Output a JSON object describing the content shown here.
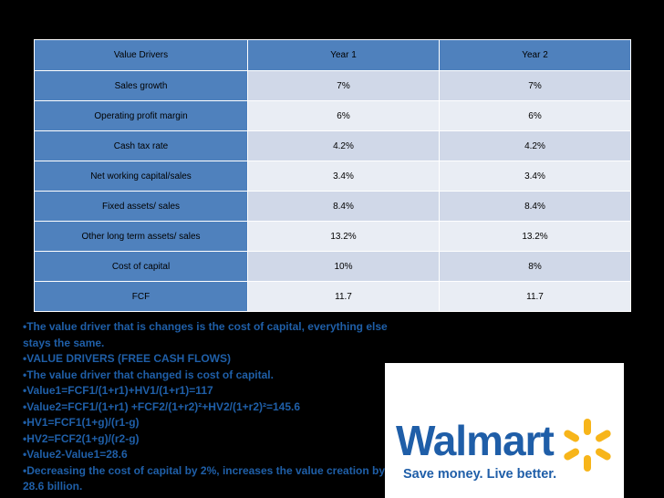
{
  "table": {
    "headers": [
      "Value Drivers",
      "Year 1",
      "Year 2"
    ],
    "rows": [
      {
        "label": "Sales growth",
        "y1": "7%",
        "y2": "7%"
      },
      {
        "label": "Operating profit margin",
        "y1": "6%",
        "y2": "6%"
      },
      {
        "label": "Cash tax rate",
        "y1": "4.2%",
        "y2": "4.2%"
      },
      {
        "label": "Net working capital/sales",
        "y1": "3.4%",
        "y2": "3.4%"
      },
      {
        "label": "Fixed assets/ sales",
        "y1": "8.4%",
        "y2": "8.4%"
      },
      {
        "label": "Other long term assets/ sales",
        "y1": "13.2%",
        "y2": "13.2%"
      },
      {
        "label": "Cost of capital",
        "y1": "10%",
        "y2": "8%"
      },
      {
        "label": "FCF",
        "y1": "11.7",
        "y2": "11.7"
      }
    ]
  },
  "notes": [
    "The value driver that is changes is the cost of capital, everything else stays the same.",
    "VALUE DRIVERS (FREE CASH FLOWS)",
    "The value driver that changed is cost of capital.",
    "Value1=FCF1/(1+r1)+HV1/(1+r1)=117",
    "Value2=FCF1/(1+r1) +FCF2/(1+r2)²+HV2/(1+r2)²=145.6",
    "HV1=FCF1(1+g)/(r1-g)",
    "HV2=FCF2(1+g)/(r2-g)",
    "Value2-Value1=28.6",
    "Decreasing the cost of capital by 2%, increases the value creation by 28.6 billion."
  ],
  "logo": {
    "name": "Walmart",
    "tagline": "Save money. Live better.",
    "icon": "spark-icon",
    "brand_blue": "#1f5ea8",
    "spark_yellow": "#f7b51a"
  }
}
